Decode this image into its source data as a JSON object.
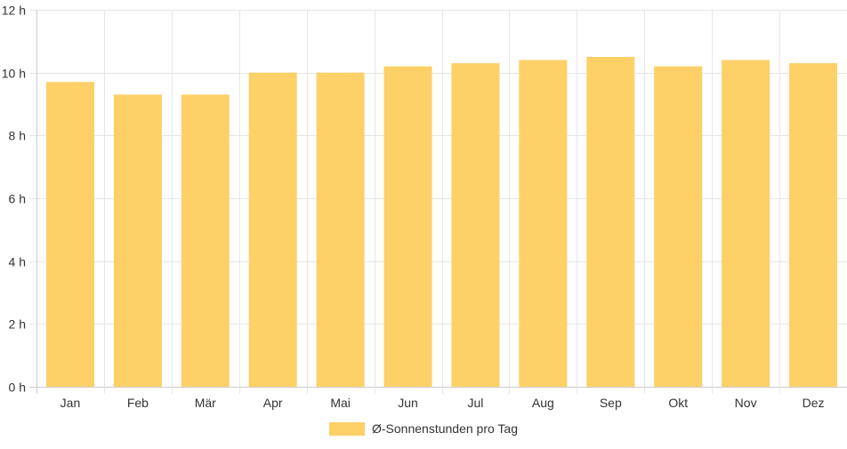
{
  "chart_data": {
    "type": "bar",
    "categories": [
      "Jan",
      "Feb",
      "Mär",
      "Apr",
      "Mai",
      "Jun",
      "Jul",
      "Aug",
      "Sep",
      "Okt",
      "Nov",
      "Dez"
    ],
    "series": [
      {
        "name": "Ø-Sonnenstunden pro Tag",
        "values": [
          9.7,
          9.3,
          9.3,
          10.0,
          10.0,
          10.2,
          10.3,
          10.4,
          10.5,
          10.2,
          10.4,
          10.3
        ],
        "color": "#fdd068"
      }
    ],
    "y_ticks": [
      "0 h",
      "2 h",
      "4 h",
      "6 h",
      "8 h",
      "10 h",
      "12 h"
    ],
    "ylim": [
      0,
      12
    ],
    "grid": true,
    "legend_position": "bottom"
  },
  "legend": {
    "label": "Ø-Sonnenstunden pro Tag",
    "color": "#fdd068"
  }
}
